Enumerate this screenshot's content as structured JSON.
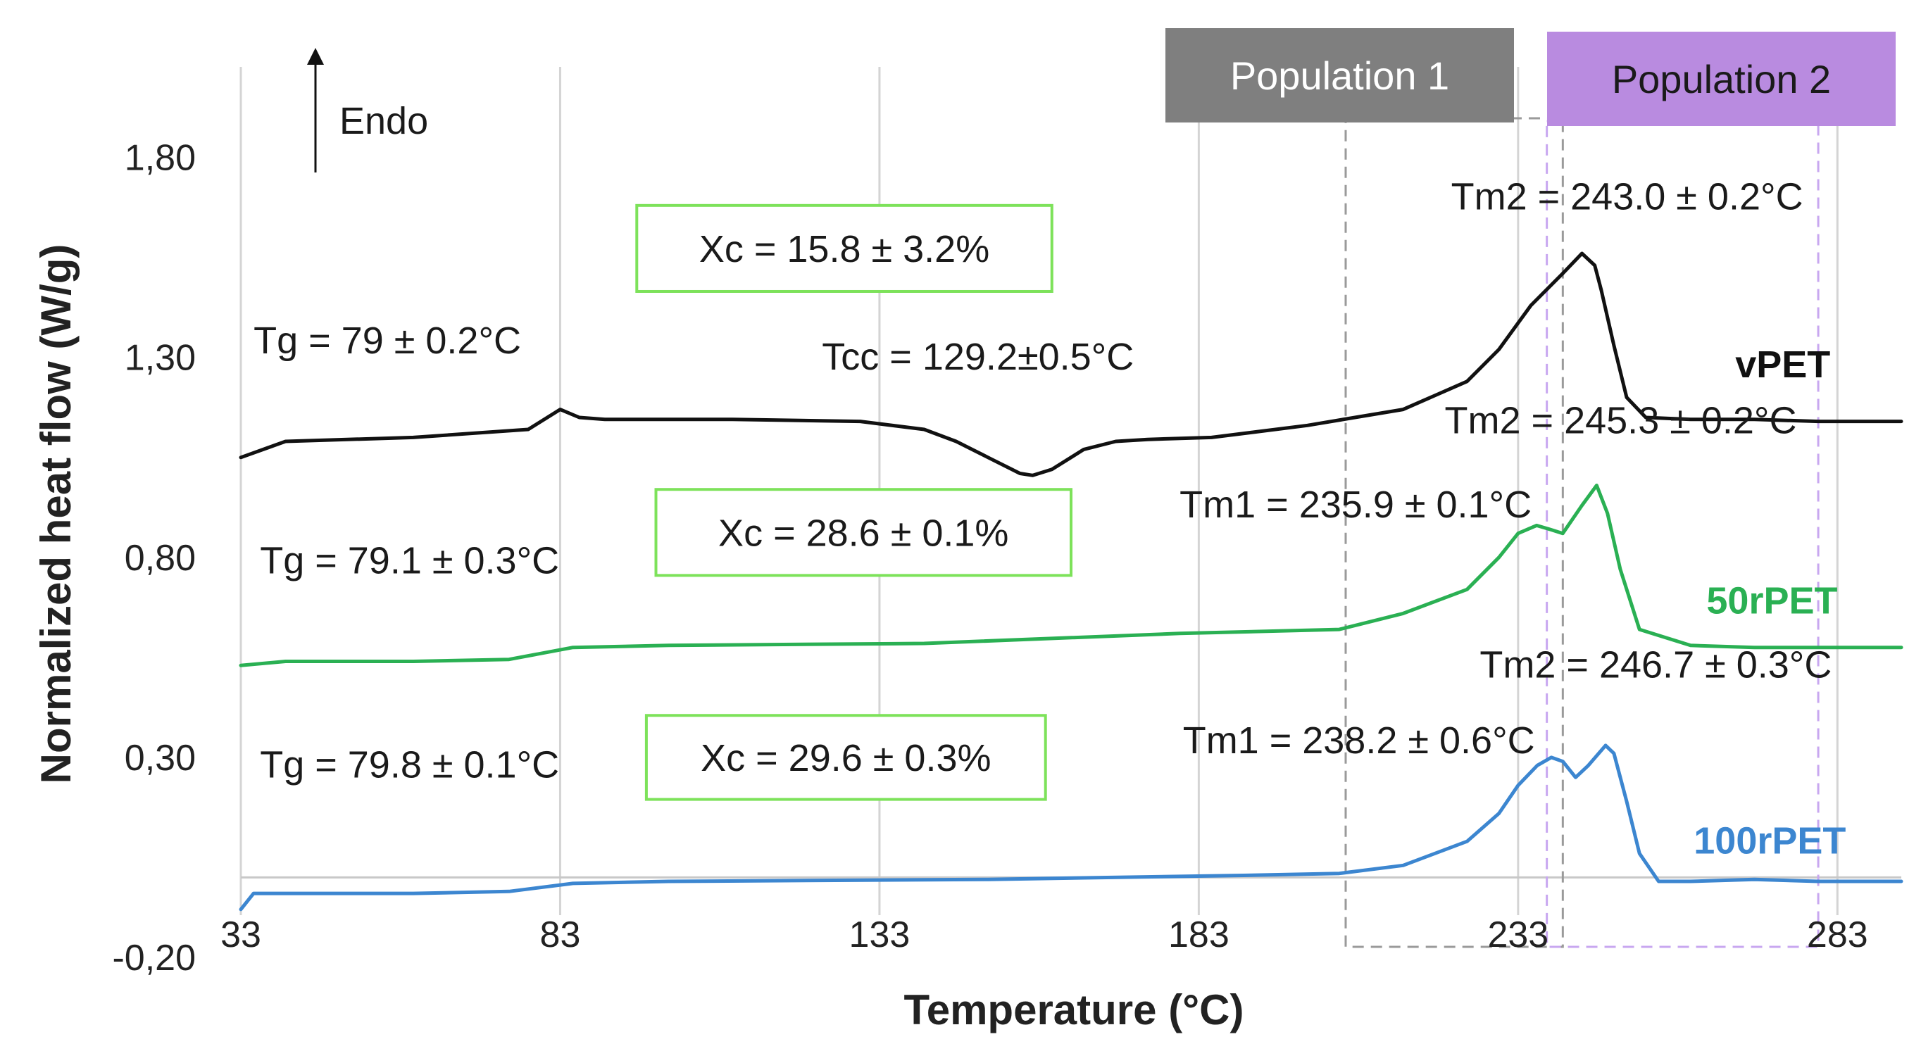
{
  "chart_data": {
    "type": "line",
    "xlabel": "Temperature (°C)",
    "ylabel": "Normalized heat flow (W/g)",
    "xlim": [
      33,
      293
    ],
    "ylim": [
      -0.2,
      2.0
    ],
    "x_ticks": [
      33,
      83,
      133,
      183,
      233,
      283
    ],
    "x_tick_labels": [
      "33",
      "83",
      "133",
      "183",
      "233",
      "283"
    ],
    "y_ticks": [
      -0.2,
      0.3,
      0.8,
      1.3,
      1.8
    ],
    "y_tick_labels": [
      "-0,20",
      "0,30",
      "0,80",
      "1,30",
      "1,80"
    ],
    "grid": "vertical",
    "endo_label": "Endo",
    "populations": [
      {
        "name": "Population 1",
        "x_range": [
          206,
          240
        ],
        "color": "#7f7f7f",
        "text_color": "#ffffff"
      },
      {
        "name": "Population 2",
        "x_range": [
          237.5,
          280
        ],
        "color": "#b98be0",
        "text_color": "#1a1a1a"
      }
    ],
    "series": [
      {
        "name": "vPET",
        "color": "#111111",
        "x": [
          33,
          40,
          60,
          78,
          81,
          83,
          86,
          90,
          110,
          130,
          140,
          145,
          150,
          155,
          157,
          160,
          165,
          170,
          175,
          185,
          200,
          215,
          225,
          230,
          235,
          240,
          243,
          245,
          246,
          248,
          250,
          253,
          260,
          270,
          280,
          293
        ],
        "y": [
          1.05,
          1.09,
          1.1,
          1.12,
          1.15,
          1.17,
          1.15,
          1.145,
          1.145,
          1.14,
          1.12,
          1.09,
          1.05,
          1.01,
          1.005,
          1.02,
          1.07,
          1.09,
          1.095,
          1.1,
          1.13,
          1.17,
          1.24,
          1.32,
          1.43,
          1.51,
          1.56,
          1.53,
          1.47,
          1.33,
          1.2,
          1.15,
          1.145,
          1.145,
          1.14,
          1.14
        ]
      },
      {
        "name": "50rPET",
        "color": "#2ab053",
        "x": [
          33,
          40,
          60,
          75,
          85,
          100,
          140,
          180,
          205,
          215,
          225,
          230,
          233,
          235.9,
          238,
          240,
          243,
          245.3,
          247,
          249,
          252,
          260,
          270,
          280,
          293
        ],
        "y": [
          0.53,
          0.54,
          0.54,
          0.545,
          0.575,
          0.58,
          0.585,
          0.61,
          0.62,
          0.66,
          0.72,
          0.8,
          0.86,
          0.88,
          0.87,
          0.86,
          0.93,
          0.98,
          0.91,
          0.77,
          0.62,
          0.58,
          0.575,
          0.575,
          0.575
        ]
      },
      {
        "name": "100rPET",
        "color": "#3c86d0",
        "x": [
          33,
          35,
          60,
          75,
          85,
          100,
          150,
          190,
          205,
          215,
          225,
          230,
          233,
          236,
          238.2,
          240,
          242,
          244,
          246.7,
          248,
          250,
          252,
          255,
          260,
          270,
          280,
          293
        ],
        "y": [
          -0.08,
          -0.04,
          -0.04,
          -0.035,
          -0.015,
          -0.01,
          -0.005,
          0.005,
          0.01,
          0.03,
          0.09,
          0.16,
          0.23,
          0.28,
          0.3,
          0.29,
          0.25,
          0.28,
          0.33,
          0.31,
          0.19,
          0.06,
          -0.01,
          -0.01,
          -0.005,
          -0.01,
          -0.01
        ]
      }
    ],
    "annotations": [
      {
        "text": "Tg = 79 ± 0.2°C",
        "x": 35,
        "y": 1.31
      },
      {
        "text": "Tcc = 129.2±0.5°C",
        "x": 124,
        "y": 1.27
      },
      {
        "text": "Tm2 = 243.0 ± 0.2°C",
        "x": 222.5,
        "y": 1.67
      },
      {
        "text": "Tm2 = 245.3 ± 0.2°C",
        "x": 221.5,
        "y": 1.11
      },
      {
        "text": "Tm1 = 235.9 ± 0.1°C",
        "x": 180,
        "y": 0.9
      },
      {
        "text": "Tg = 79.1 ± 0.3°C",
        "x": 36,
        "y": 0.76
      },
      {
        "text": "Tm2 = 246.7 ± 0.3°C",
        "x": 227,
        "y": 0.5
      },
      {
        "text": "Tm1 = 238.2 ± 0.6°C",
        "x": 180.5,
        "y": 0.31
      },
      {
        "text": "Tg = 79.8 ± 0.1°C",
        "x": 36,
        "y": 0.25
      }
    ],
    "crystallinity_boxes": [
      {
        "text": "Xc = 15.8 ± 3.2%",
        "x_range": [
          95,
          160
        ],
        "y_range": [
          1.465,
          1.68
        ]
      },
      {
        "text": "Xc = 28.6 ± 0.1%",
        "x_range": [
          98,
          163
        ],
        "y_range": [
          0.755,
          0.97
        ]
      },
      {
        "text": "Xc = 29.6 ± 0.3%",
        "x_range": [
          96.5,
          159
        ],
        "y_range": [
          0.195,
          0.405
        ]
      }
    ],
    "series_labels": [
      {
        "name": "vPET",
        "x": 267,
        "y": 1.25
      },
      {
        "name": "50rPET",
        "x": 262.5,
        "y": 0.66
      },
      {
        "name": "100rPET",
        "x": 260.5,
        "y": 0.06
      }
    ]
  }
}
